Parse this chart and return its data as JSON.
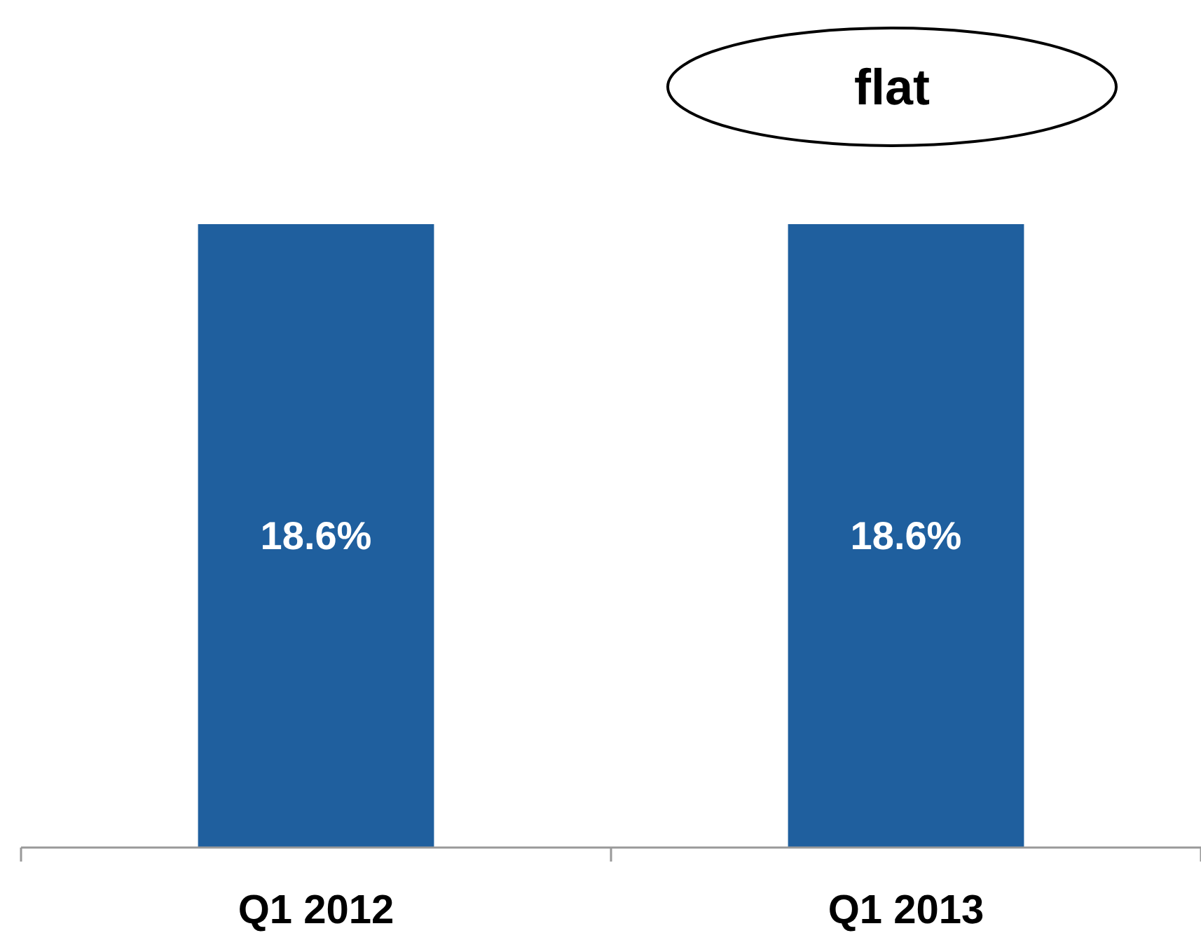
{
  "chart_data": {
    "type": "bar",
    "categories": [
      "Q1 2012",
      "Q1 2013"
    ],
    "values": [
      18.6,
      18.6
    ],
    "color": "#1f5f9e",
    "value_labels": [
      "18.6%",
      "18.6%"
    ],
    "annotations": [
      "flat"
    ]
  }
}
